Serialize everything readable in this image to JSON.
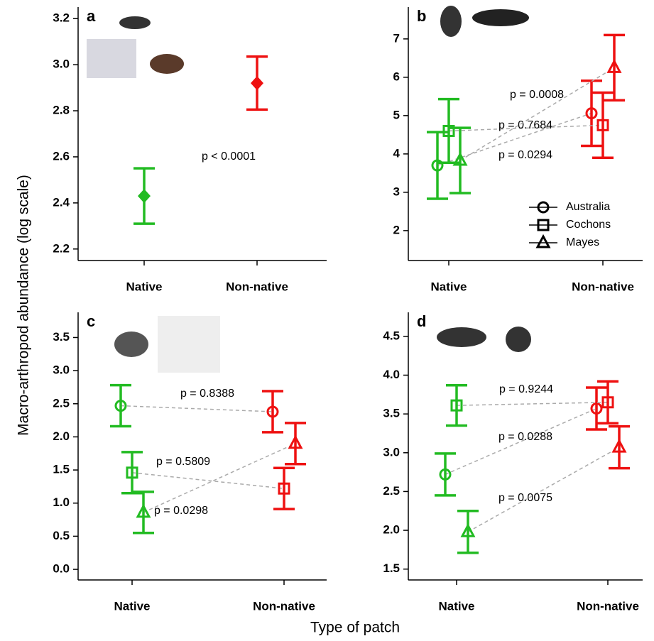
{
  "axis_labels": {
    "y": "Macro-arthropod abundance  (log scale)",
    "x": "Type of patch"
  },
  "chart_data": [
    {
      "type": "errorbar",
      "label": "a",
      "ylim": [
        2.15,
        3.25
      ],
      "yticks": [
        2.2,
        2.4,
        2.6,
        2.8,
        {
          "value": 3,
          "label": "3.0"
        },
        3.2
      ],
      "categories": [
        "Native",
        "Non-native"
      ],
      "category_colors": [
        "#22bb22",
        "#ee1111"
      ],
      "series": [
        {
          "marker": "diamond",
          "values": [
            2.43,
            2.92
          ],
          "errors": [
            0.12,
            0.115
          ],
          "p_label": "p < 0.0001"
        }
      ]
    },
    {
      "type": "errorbar",
      "label": "b",
      "ylim": [
        1.22,
        7.83
      ],
      "yticks": [
        2,
        3,
        4,
        5,
        6,
        7
      ],
      "categories": [
        "Native",
        "Non-native"
      ],
      "category_colors": [
        "#22bb22",
        "#ee1111"
      ],
      "legend": "lower right",
      "series": [
        {
          "name": "Australia",
          "marker": "circle",
          "values": [
            3.7,
            5.06
          ],
          "errors": [
            0.87,
            0.85
          ],
          "p_label": "p = 0.0294"
        },
        {
          "name": "Cochons",
          "marker": "square",
          "values": [
            4.6,
            4.75
          ],
          "errors": [
            0.83,
            0.85
          ],
          "p_label": "p = 0.7684"
        },
        {
          "name": "Mayes",
          "marker": "triangle",
          "values": [
            3.83,
            6.25
          ],
          "errors": [
            0.85,
            0.85
          ],
          "p_label": "p = 0.0008"
        }
      ]
    },
    {
      "type": "errorbar",
      "label": "c",
      "ylim": [
        -0.16,
        3.88
      ],
      "yticks": [
        {
          "value": 0,
          "label": "0.0"
        },
        0.5,
        {
          "value": 1,
          "label": "1.0"
        },
        1.5,
        {
          "value": 2,
          "label": "2.0"
        },
        2.5,
        {
          "value": 3,
          "label": "3.0"
        },
        3.5
      ],
      "categories": [
        "Native",
        "Non-native"
      ],
      "category_colors": [
        "#22bb22",
        "#ee1111"
      ],
      "series": [
        {
          "marker": "circle",
          "values": [
            2.47,
            2.38
          ],
          "errors": [
            0.31,
            0.31
          ],
          "p_label": "p = 0.8388"
        },
        {
          "marker": "square",
          "values": [
            1.46,
            1.22
          ],
          "errors": [
            0.31,
            0.31
          ],
          "p_label": "p = 0.5809"
        },
        {
          "marker": "triangle",
          "values": [
            0.86,
            1.9
          ],
          "errors": [
            0.31,
            0.31
          ],
          "p_label": "p = 0.0298"
        }
      ]
    },
    {
      "type": "errorbar",
      "label": "d",
      "ylim": [
        1.36,
        4.81
      ],
      "yticks": [
        1.5,
        {
          "value": 2,
          "label": "2.0"
        },
        2.5,
        {
          "value": 3,
          "label": "3.0"
        },
        3.5,
        {
          "value": 4,
          "label": "4.0"
        },
        4.5
      ],
      "categories": [
        "Native",
        "Non-native"
      ],
      "category_colors": [
        "#22bb22",
        "#ee1111"
      ],
      "series": [
        {
          "marker": "circle",
          "values": [
            2.72,
            3.57
          ],
          "errors": [
            0.27,
            0.27
          ],
          "p_label": "p = 0.0288"
        },
        {
          "marker": "square",
          "values": [
            3.61,
            3.65
          ],
          "errors": [
            0.26,
            0.27
          ],
          "p_label": "p = 0.9244"
        },
        {
          "marker": "triangle",
          "values": [
            1.98,
            3.07
          ],
          "errors": [
            0.27,
            0.27
          ],
          "p_label": "p = 0.0075"
        }
      ]
    }
  ]
}
